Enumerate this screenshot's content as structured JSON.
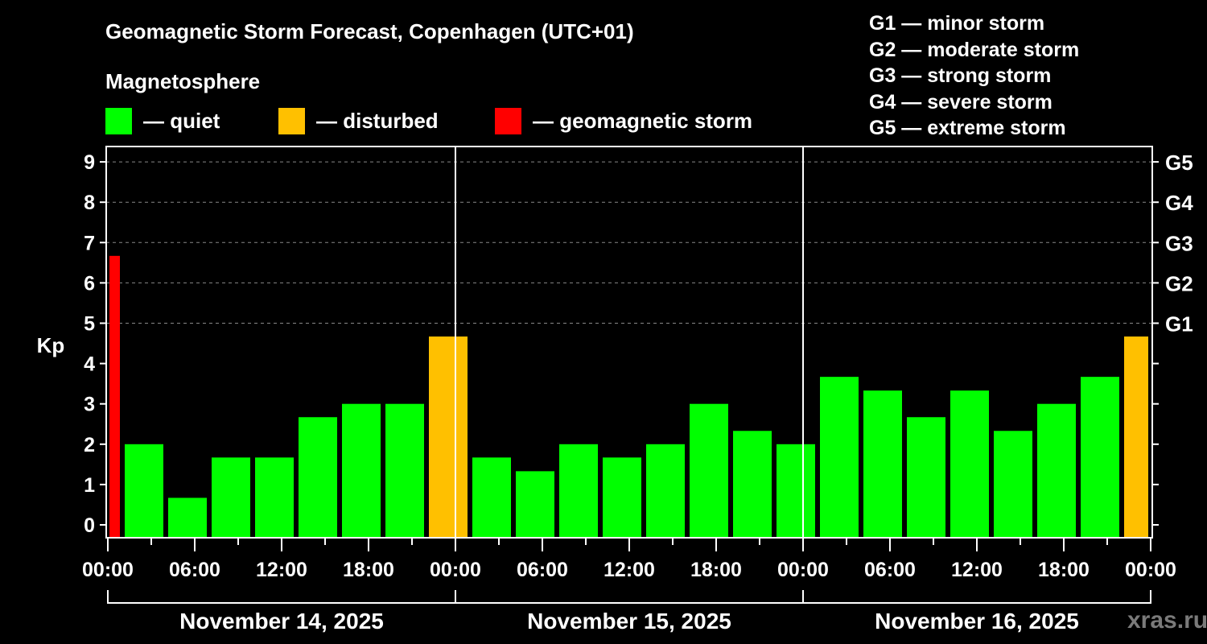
{
  "title": "Geomagnetic Storm Forecast, Copenhagen (UTC+01)",
  "legend": {
    "heading": "Magnetosphere",
    "items": [
      {
        "label": "— quiet",
        "color": "#00ff00"
      },
      {
        "label": "— disturbed",
        "color": "#ffc000"
      },
      {
        "label": "— geomagnetic storm",
        "color": "#ff0000"
      }
    ]
  },
  "g_scale": [
    "G1 — minor storm",
    "G2 — moderate storm",
    "G3 — strong storm",
    "G4 — severe storm",
    "G5 — extreme storm"
  ],
  "watermark": "xras.ru",
  "chart_data": {
    "type": "bar",
    "title": "Geomagnetic Storm Forecast, Copenhagen (UTC+01)",
    "ylabel": "Kp",
    "ylim": [
      0,
      9
    ],
    "yticks": [
      "0",
      "1",
      "2",
      "3",
      "4",
      "5",
      "6",
      "7",
      "8",
      "9"
    ],
    "right_ticks": [
      {
        "kp": 5,
        "label": "G1"
      },
      {
        "kp": 6,
        "label": "G2"
      },
      {
        "kp": 7,
        "label": "G3"
      },
      {
        "kp": 8,
        "label": "G4"
      },
      {
        "kp": 9,
        "label": "G5"
      }
    ],
    "xticks": [
      "00:00",
      "06:00",
      "12:00",
      "18:00",
      "00:00",
      "06:00",
      "12:00",
      "18:00",
      "00:00",
      "06:00",
      "12:00",
      "18:00",
      "00:00"
    ],
    "dates": [
      "November 14, 2025",
      "November 15, 2025",
      "November 16, 2025"
    ],
    "grid": "dashed at Kp 5-9",
    "bars": [
      {
        "start_hour": 0,
        "end_hour": 1,
        "kp": 6.67,
        "status": "storm"
      },
      {
        "start_hour": 1,
        "end_hour": 4,
        "kp": 2.0,
        "status": "quiet"
      },
      {
        "start_hour": 4,
        "end_hour": 7,
        "kp": 0.67,
        "status": "quiet"
      },
      {
        "start_hour": 7,
        "end_hour": 10,
        "kp": 1.67,
        "status": "quiet"
      },
      {
        "start_hour": 10,
        "end_hour": 13,
        "kp": 1.67,
        "status": "quiet"
      },
      {
        "start_hour": 13,
        "end_hour": 16,
        "kp": 2.67,
        "status": "quiet"
      },
      {
        "start_hour": 16,
        "end_hour": 19,
        "kp": 3.0,
        "status": "quiet"
      },
      {
        "start_hour": 19,
        "end_hour": 22,
        "kp": 3.0,
        "status": "quiet"
      },
      {
        "start_hour": 22,
        "end_hour": 25,
        "kp": 4.67,
        "status": "disturbed"
      },
      {
        "start_hour": 25,
        "end_hour": 28,
        "kp": 1.67,
        "status": "quiet"
      },
      {
        "start_hour": 28,
        "end_hour": 31,
        "kp": 1.33,
        "status": "quiet"
      },
      {
        "start_hour": 31,
        "end_hour": 34,
        "kp": 2.0,
        "status": "quiet"
      },
      {
        "start_hour": 34,
        "end_hour": 37,
        "kp": 1.67,
        "status": "quiet"
      },
      {
        "start_hour": 37,
        "end_hour": 40,
        "kp": 2.0,
        "status": "quiet"
      },
      {
        "start_hour": 40,
        "end_hour": 43,
        "kp": 3.0,
        "status": "quiet"
      },
      {
        "start_hour": 43,
        "end_hour": 46,
        "kp": 2.33,
        "status": "quiet"
      },
      {
        "start_hour": 46,
        "end_hour": 49,
        "kp": 2.0,
        "status": "quiet"
      },
      {
        "start_hour": 49,
        "end_hour": 52,
        "kp": 3.67,
        "status": "quiet"
      },
      {
        "start_hour": 52,
        "end_hour": 55,
        "kp": 3.33,
        "status": "quiet"
      },
      {
        "start_hour": 55,
        "end_hour": 58,
        "kp": 2.67,
        "status": "quiet"
      },
      {
        "start_hour": 58,
        "end_hour": 61,
        "kp": 3.33,
        "status": "quiet"
      },
      {
        "start_hour": 61,
        "end_hour": 64,
        "kp": 2.33,
        "status": "quiet"
      },
      {
        "start_hour": 64,
        "end_hour": 67,
        "kp": 3.0,
        "status": "quiet"
      },
      {
        "start_hour": 67,
        "end_hour": 70,
        "kp": 3.67,
        "status": "quiet"
      },
      {
        "start_hour": 70,
        "end_hour": 72,
        "kp": 4.67,
        "status": "disturbed"
      }
    ],
    "status_colors": {
      "quiet": "#00ff00",
      "disturbed": "#ffc000",
      "storm": "#ff0000"
    }
  }
}
